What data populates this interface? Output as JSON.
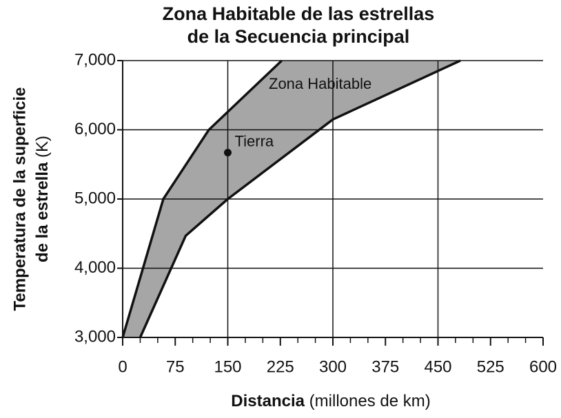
{
  "chart_data": {
    "type": "range_area",
    "title": [
      "Zona Habitable de las estrellas",
      "de la Secuencia principal"
    ],
    "xlabel": {
      "bold": "Distancia",
      "rest": "(millones de km)"
    },
    "ylabel": [
      "Temperatura de la superficie",
      "de la estrella",
      "(K)"
    ],
    "xlim": [
      0,
      600
    ],
    "ylim": [
      3000,
      7000
    ],
    "xticks": [
      0,
      75,
      150,
      225,
      300,
      375,
      450,
      525,
      600
    ],
    "xminorticks": [
      25,
      50,
      100,
      125,
      175,
      200,
      250,
      275,
      325,
      350,
      400,
      425,
      475,
      500,
      550,
      575
    ],
    "xgrid": [
      150,
      300,
      450
    ],
    "yticks": [
      {
        "value": 3000,
        "label": "3,000"
      },
      {
        "value": 4000,
        "label": "4,000"
      },
      {
        "value": 5000,
        "label": "5,000"
      },
      {
        "value": 6000,
        "label": "6,000"
      },
      {
        "value": 7000,
        "label": "7,000"
      }
    ],
    "color": "#a6a6a6",
    "boundaries": [
      {
        "x": [
          0,
          58,
          123,
          227
        ],
        "y": [
          3000,
          5000,
          6000,
          7000
        ]
      },
      {
        "x": [
          25,
          90,
          150,
          300,
          482
        ],
        "y": [
          3000,
          4470,
          5000,
          6150,
          7000
        ]
      }
    ],
    "area_label": "Zona Habitable",
    "point": {
      "label": "Tierra",
      "x": 150,
      "y": 5670
    }
  }
}
